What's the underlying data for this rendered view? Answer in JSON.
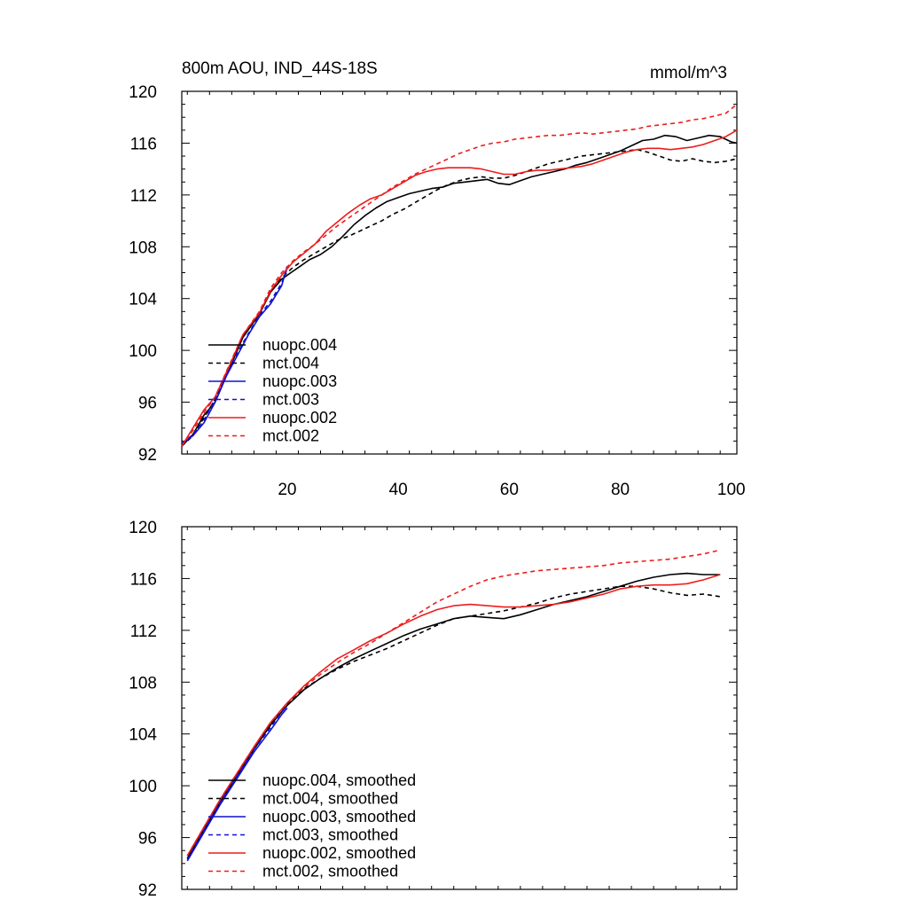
{
  "figure": {
    "title_left": "800m AOU, IND_44S-18S",
    "title_right": "mmol/m^3"
  },
  "colors": {
    "black": "#000000",
    "blue": "#1010d0",
    "red": "#ee1c1c"
  },
  "chart_data": [
    {
      "type": "line",
      "title": "800m AOU, IND_44S-18S",
      "units": "mmol/m^3",
      "xlim": [
        1,
        101
      ],
      "ylim": [
        92,
        120
      ],
      "x_ticks": [
        20,
        40,
        60,
        80,
        100
      ],
      "y_ticks": [
        92,
        96,
        100,
        104,
        108,
        112,
        116,
        120
      ],
      "x_tick_labels": [
        "20",
        "40",
        "60",
        "80",
        "100"
      ],
      "y_tick_labels": [
        "92",
        "96",
        "100",
        "104",
        "108",
        "112",
        "116",
        "120"
      ],
      "legend_position": "lower-left",
      "series": [
        {
          "name": "nuopc.004",
          "color": "#000000",
          "dash": "solid",
          "x": [
            1,
            3,
            5,
            7,
            10,
            12,
            15,
            17,
            19,
            21,
            22,
            24,
            26,
            28,
            30,
            32,
            34,
            36,
            38,
            40,
            42,
            44,
            46,
            48,
            50,
            52,
            54,
            56,
            58,
            60,
            62,
            64,
            66,
            68,
            70,
            72,
            74,
            76,
            78,
            80,
            82,
            84,
            86,
            88,
            90,
            92,
            94,
            96,
            98,
            100,
            101
          ],
          "y": [
            92.6,
            93.5,
            95.0,
            96.0,
            99.0,
            101.0,
            102.8,
            104.5,
            105.5,
            106.1,
            106.4,
            107.0,
            107.4,
            108.0,
            108.8,
            109.7,
            110.4,
            111.0,
            111.5,
            111.8,
            112.1,
            112.3,
            112.5,
            112.6,
            112.9,
            113.0,
            113.1,
            113.2,
            112.9,
            112.8,
            113.1,
            113.4,
            113.6,
            113.8,
            114.0,
            114.3,
            114.5,
            114.8,
            115.1,
            115.4,
            115.8,
            116.2,
            116.3,
            116.6,
            116.5,
            116.2,
            116.4,
            116.6,
            116.5,
            116.1,
            116.0
          ]
        },
        {
          "name": "mct.004",
          "color": "#000000",
          "dash": "dashed",
          "x": [
            1,
            3,
            5,
            7,
            10,
            12,
            15,
            17,
            19,
            21,
            23,
            25,
            27,
            29,
            31,
            33,
            35,
            37,
            39,
            41,
            43,
            45,
            47,
            49,
            51,
            53,
            55,
            57,
            59,
            61,
            63,
            65,
            67,
            69,
            71,
            73,
            75,
            77,
            79,
            81,
            83,
            85,
            87,
            89,
            91,
            93,
            95,
            97,
            99,
            101
          ],
          "y": [
            92.6,
            93.4,
            94.8,
            96.2,
            99.2,
            101.0,
            102.9,
            104.6,
            105.6,
            106.4,
            107.0,
            107.5,
            108.0,
            108.5,
            108.8,
            109.2,
            109.6,
            110.0,
            110.5,
            110.9,
            111.4,
            111.9,
            112.4,
            112.8,
            113.1,
            113.3,
            113.4,
            113.3,
            113.3,
            113.5,
            113.8,
            114.1,
            114.4,
            114.6,
            114.8,
            115.0,
            115.1,
            115.2,
            115.3,
            115.4,
            115.5,
            115.3,
            115.0,
            114.7,
            114.6,
            114.8,
            114.6,
            114.5,
            114.6,
            114.8
          ]
        },
        {
          "name": "nuopc.003",
          "color": "#1010d0",
          "dash": "solid",
          "x": [
            1,
            3,
            5,
            7,
            9,
            11,
            13,
            15,
            17,
            19,
            20
          ],
          "y": [
            92.8,
            93.4,
            94.4,
            96.0,
            98.0,
            99.6,
            101.2,
            102.6,
            103.6,
            105.0,
            106.5
          ]
        },
        {
          "name": "mct.003",
          "color": "#1010d0",
          "dash": "dashed",
          "x": [
            1,
            3,
            5,
            7,
            9,
            11,
            13,
            15,
            17,
            19,
            20
          ],
          "y": [
            92.8,
            93.5,
            94.6,
            96.3,
            98.2,
            99.8,
            101.3,
            102.7,
            103.8,
            105.2,
            106.3
          ]
        },
        {
          "name": "nuopc.002",
          "color": "#ee1c1c",
          "dash": "solid",
          "x": [
            1,
            3,
            5,
            7,
            10,
            12,
            15,
            17,
            19,
            21,
            23,
            25,
            27,
            29,
            31,
            33,
            35,
            37,
            39,
            41,
            43,
            45,
            47,
            49,
            51,
            53,
            55,
            57,
            59,
            61,
            63,
            65,
            67,
            69,
            71,
            73,
            75,
            77,
            79,
            81,
            83,
            85,
            87,
            89,
            91,
            93,
            95,
            97,
            99,
            101
          ],
          "y": [
            92.6,
            94.0,
            95.4,
            96.4,
            99.2,
            101.2,
            102.9,
            104.6,
            105.8,
            106.8,
            107.5,
            108.2,
            109.2,
            109.9,
            110.6,
            111.2,
            111.7,
            112.0,
            112.5,
            113.0,
            113.5,
            113.8,
            114.0,
            114.1,
            114.1,
            114.1,
            114.0,
            113.8,
            113.6,
            113.6,
            113.8,
            113.9,
            113.9,
            114.0,
            114.1,
            114.2,
            114.4,
            114.7,
            115.0,
            115.3,
            115.5,
            115.6,
            115.6,
            115.5,
            115.6,
            115.7,
            115.9,
            116.2,
            116.5,
            117.0
          ]
        },
        {
          "name": "mct.002",
          "color": "#ee1c1c",
          "dash": "dashed",
          "x": [
            1,
            3,
            5,
            7,
            10,
            12,
            15,
            17,
            19,
            21,
            23,
            25,
            27,
            29,
            31,
            33,
            35,
            37,
            39,
            41,
            43,
            45,
            47,
            49,
            51,
            53,
            55,
            57,
            59,
            61,
            63,
            65,
            67,
            69,
            71,
            73,
            75,
            77,
            79,
            81,
            83,
            85,
            87,
            89,
            91,
            93,
            95,
            97,
            99,
            101
          ],
          "y": [
            92.6,
            93.8,
            95.2,
            96.4,
            99.3,
            101.2,
            103.0,
            104.8,
            106.0,
            106.9,
            107.6,
            108.2,
            108.9,
            109.6,
            110.2,
            110.8,
            111.4,
            112.0,
            112.6,
            113.1,
            113.6,
            114.0,
            114.4,
            114.8,
            115.2,
            115.5,
            115.8,
            116.0,
            116.1,
            116.3,
            116.4,
            116.5,
            116.6,
            116.6,
            116.7,
            116.8,
            116.7,
            116.8,
            116.9,
            117.0,
            117.1,
            117.3,
            117.4,
            117.5,
            117.6,
            117.8,
            117.9,
            118.1,
            118.3,
            119.0
          ]
        }
      ]
    },
    {
      "type": "line",
      "xlim": [
        1,
        101
      ],
      "ylim": [
        92,
        120
      ],
      "x_ticks": [
        20,
        40,
        60,
        80,
        100
      ],
      "y_ticks": [
        92,
        96,
        100,
        104,
        108,
        112,
        116,
        120
      ],
      "y_tick_labels": [
        "92",
        "96",
        "100",
        "104",
        "108",
        "112",
        "116",
        "120"
      ],
      "legend_position": "lower-left",
      "series": [
        {
          "name": "nuopc.004, smoothed",
          "color": "#000000",
          "dash": "solid",
          "x": [
            2,
            5,
            8,
            11,
            14,
            17,
            20,
            23,
            26,
            29,
            32,
            35,
            38,
            41,
            44,
            47,
            50,
            53,
            56,
            59,
            62,
            65,
            68,
            71,
            74,
            77,
            80,
            83,
            86,
            89,
            92,
            95,
            98
          ],
          "y": [
            94.4,
            96.6,
            98.8,
            100.8,
            102.8,
            104.7,
            106.2,
            107.4,
            108.3,
            109.1,
            109.8,
            110.4,
            111.0,
            111.6,
            112.1,
            112.5,
            112.9,
            113.1,
            113.0,
            112.9,
            113.2,
            113.6,
            114.0,
            114.3,
            114.6,
            115.0,
            115.4,
            115.8,
            116.1,
            116.3,
            116.4,
            116.3,
            116.3
          ]
        },
        {
          "name": "mct.004, smoothed",
          "color": "#000000",
          "dash": "dashed",
          "x": [
            2,
            5,
            8,
            11,
            14,
            17,
            20,
            23,
            26,
            29,
            32,
            35,
            38,
            41,
            44,
            47,
            50,
            53,
            56,
            59,
            62,
            65,
            68,
            71,
            74,
            77,
            80,
            83,
            86,
            89,
            92,
            95,
            98
          ],
          "y": [
            94.4,
            96.5,
            98.8,
            100.9,
            102.9,
            104.8,
            106.3,
            107.5,
            108.3,
            109.0,
            109.6,
            110.1,
            110.6,
            111.2,
            111.8,
            112.4,
            112.9,
            113.1,
            113.3,
            113.5,
            113.8,
            114.1,
            114.5,
            114.8,
            115.0,
            115.2,
            115.4,
            115.4,
            115.2,
            114.9,
            114.7,
            114.8,
            114.6
          ]
        },
        {
          "name": "nuopc.003, smoothed",
          "color": "#1010d0",
          "dash": "solid",
          "x": [
            2,
            5,
            8,
            11,
            14,
            17,
            19,
            20
          ],
          "y": [
            94.2,
            96.4,
            98.6,
            100.6,
            102.6,
            104.3,
            105.5,
            106.0
          ]
        },
        {
          "name": "mct.003, smoothed",
          "color": "#1010d0",
          "dash": "dashed",
          "x": [
            2,
            5,
            8,
            11,
            14,
            17,
            19,
            20
          ],
          "y": [
            94.3,
            96.6,
            98.8,
            100.8,
            102.8,
            104.5,
            105.7,
            106.2
          ]
        },
        {
          "name": "nuopc.002, smoothed",
          "color": "#ee1c1c",
          "dash": "solid",
          "x": [
            2,
            5,
            8,
            11,
            14,
            17,
            20,
            23,
            26,
            29,
            32,
            35,
            38,
            41,
            44,
            47,
            50,
            53,
            56,
            59,
            62,
            65,
            68,
            71,
            74,
            77,
            80,
            83,
            86,
            89,
            92,
            95,
            98
          ],
          "y": [
            94.6,
            96.8,
            99.0,
            101.0,
            103.0,
            104.9,
            106.4,
            107.7,
            108.8,
            109.8,
            110.5,
            111.2,
            111.8,
            112.5,
            113.1,
            113.6,
            113.9,
            114.0,
            113.9,
            113.8,
            113.8,
            113.9,
            114.0,
            114.2,
            114.5,
            114.8,
            115.2,
            115.4,
            115.5,
            115.5,
            115.6,
            115.9,
            116.3
          ]
        },
        {
          "name": "mct.002, smoothed",
          "color": "#ee1c1c",
          "dash": "dashed",
          "x": [
            2,
            5,
            8,
            11,
            14,
            17,
            20,
            23,
            26,
            29,
            32,
            35,
            38,
            41,
            44,
            47,
            50,
            53,
            56,
            59,
            62,
            65,
            68,
            71,
            74,
            77,
            80,
            83,
            86,
            89,
            92,
            95,
            98
          ],
          "y": [
            94.6,
            96.8,
            99.0,
            101.0,
            103.0,
            104.9,
            106.4,
            107.6,
            108.6,
            109.5,
            110.3,
            111.0,
            111.8,
            112.6,
            113.4,
            114.2,
            114.8,
            115.4,
            115.9,
            116.2,
            116.4,
            116.6,
            116.7,
            116.8,
            116.9,
            117.0,
            117.2,
            117.3,
            117.4,
            117.5,
            117.7,
            117.9,
            118.2
          ]
        }
      ]
    }
  ]
}
